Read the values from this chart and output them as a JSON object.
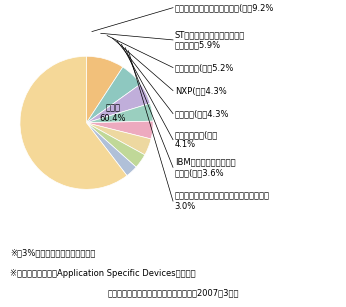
{
  "slices": [
    {
      "label": "テキサス・インスツルメンツ(米）9.2%",
      "value": 9.2,
      "color": "#F2C07A"
    },
    {
      "label": "STマイクロエレクトロニクス\n（伊／仏）5.9%",
      "value": 5.9,
      "color": "#8EC8C0"
    },
    {
      "label": "クアルコム(米）5.2%",
      "value": 5.2,
      "color": "#C0AEDA"
    },
    {
      "label": "NXP(蘭）4.3%",
      "value": 4.3,
      "color": "#9ACFBF"
    },
    {
      "label": "インテル(米）4.3%",
      "value": 4.3,
      "color": "#EDAABF"
    },
    {
      "label": "ブロードコム(米）\n4.1%",
      "value": 4.1,
      "color": "#EDD8A0"
    },
    {
      "label": "IBMマイクロエレクトロ\nニクス(米）3.6%",
      "value": 3.6,
      "color": "#C0D898"
    },
    {
      "label": "フリースケール・セミコンダクター（米）\n3.0%",
      "value": 3.0,
      "color": "#B0C0D8"
    },
    {
      "label": "その他\n60.4%",
      "value": 60.4,
      "color": "#F5D898"
    }
  ],
  "note1": "※　3%以上のシェアを有する企業",
  "note2": "※　出典資料では「Application Specific Devices」に該当",
  "source": "（出典）ガートナー　データクエスト（2007年3月）",
  "background": "#FFFFFF",
  "fig_width": 3.46,
  "fig_height": 3.07,
  "label_fontsize": 6.0,
  "note_fontsize": 6.0
}
